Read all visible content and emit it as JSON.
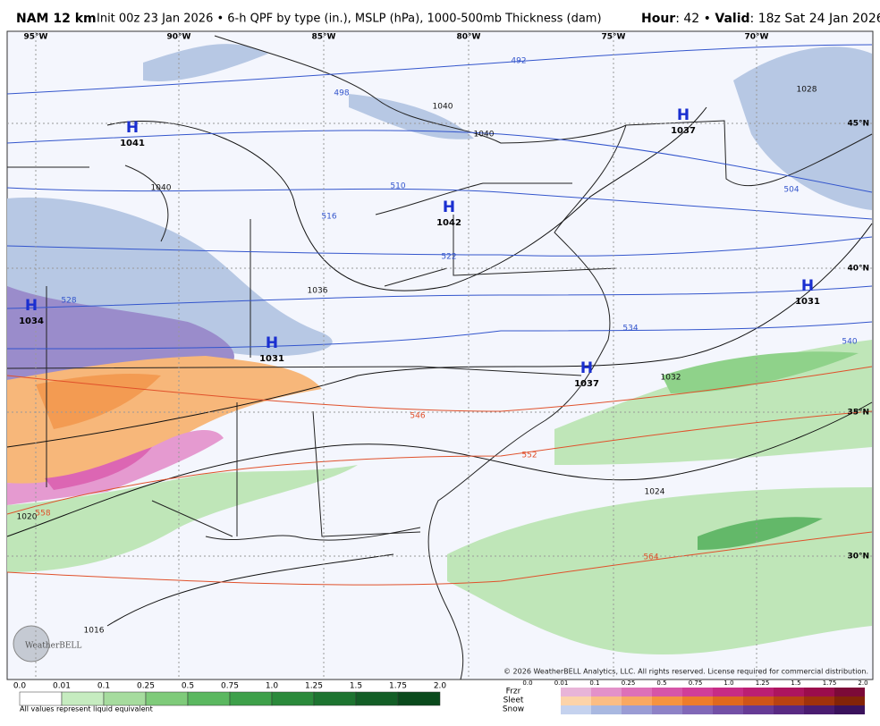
{
  "header": {
    "model": "NAM 12 km",
    "description": "Init 00z 23 Jan 2026 • 6-h QPF by type (in.), MSLP (hPa), 1000-500mb Thickness (dam)",
    "hour_label": "Hour",
    "hour": "42",
    "separator": "•",
    "valid_label": "Valid",
    "valid": "18z Sat 24 Jan 2026"
  },
  "map": {
    "longitudes": [
      "95°W",
      "90°W",
      "85°W",
      "80°W",
      "75°W",
      "70°W"
    ],
    "latitudes": [
      "45°N",
      "40°N",
      "35°N",
      "30°N"
    ],
    "highs": [
      {
        "symbol": "H",
        "pressure": 1041
      },
      {
        "symbol": "H",
        "pressure": 1037
      },
      {
        "symbol": "H",
        "pressure": 1042
      },
      {
        "symbol": "H",
        "pressure": 1031
      },
      {
        "symbol": "H",
        "pressure": 1034
      },
      {
        "symbol": "H",
        "pressure": 1031
      },
      {
        "symbol": "H",
        "pressure": 1037
      }
    ],
    "isobar_labels": [
      1040,
      1040,
      1040,
      1036,
      1032,
      1028,
      1024,
      1020,
      1016
    ],
    "thickness_labels": [
      492,
      498,
      504,
      510,
      516,
      522,
      528,
      534,
      540,
      546,
      552,
      558,
      564
    ],
    "copyright": "© 2026 WeatherBELL Analytics, LLC. All rights reserved. License required for commercial distribution.",
    "logo": "WeatherBELL"
  },
  "legend": {
    "rain_ticks": [
      "0.0",
      "0.01",
      "0.1",
      "0.25",
      "0.5",
      "0.75",
      "1.0",
      "1.25",
      "1.5",
      "1.75",
      "2.0"
    ],
    "note": "All values represent liquid equivalent",
    "types": [
      "Frzr",
      "Sleet",
      "Snow"
    ],
    "type_ticks": [
      "0.0",
      "0.01",
      "0.1",
      "0.25",
      "0.5",
      "0.75",
      "1.0",
      "1.25",
      "1.5",
      "1.75",
      "2.0"
    ]
  }
}
